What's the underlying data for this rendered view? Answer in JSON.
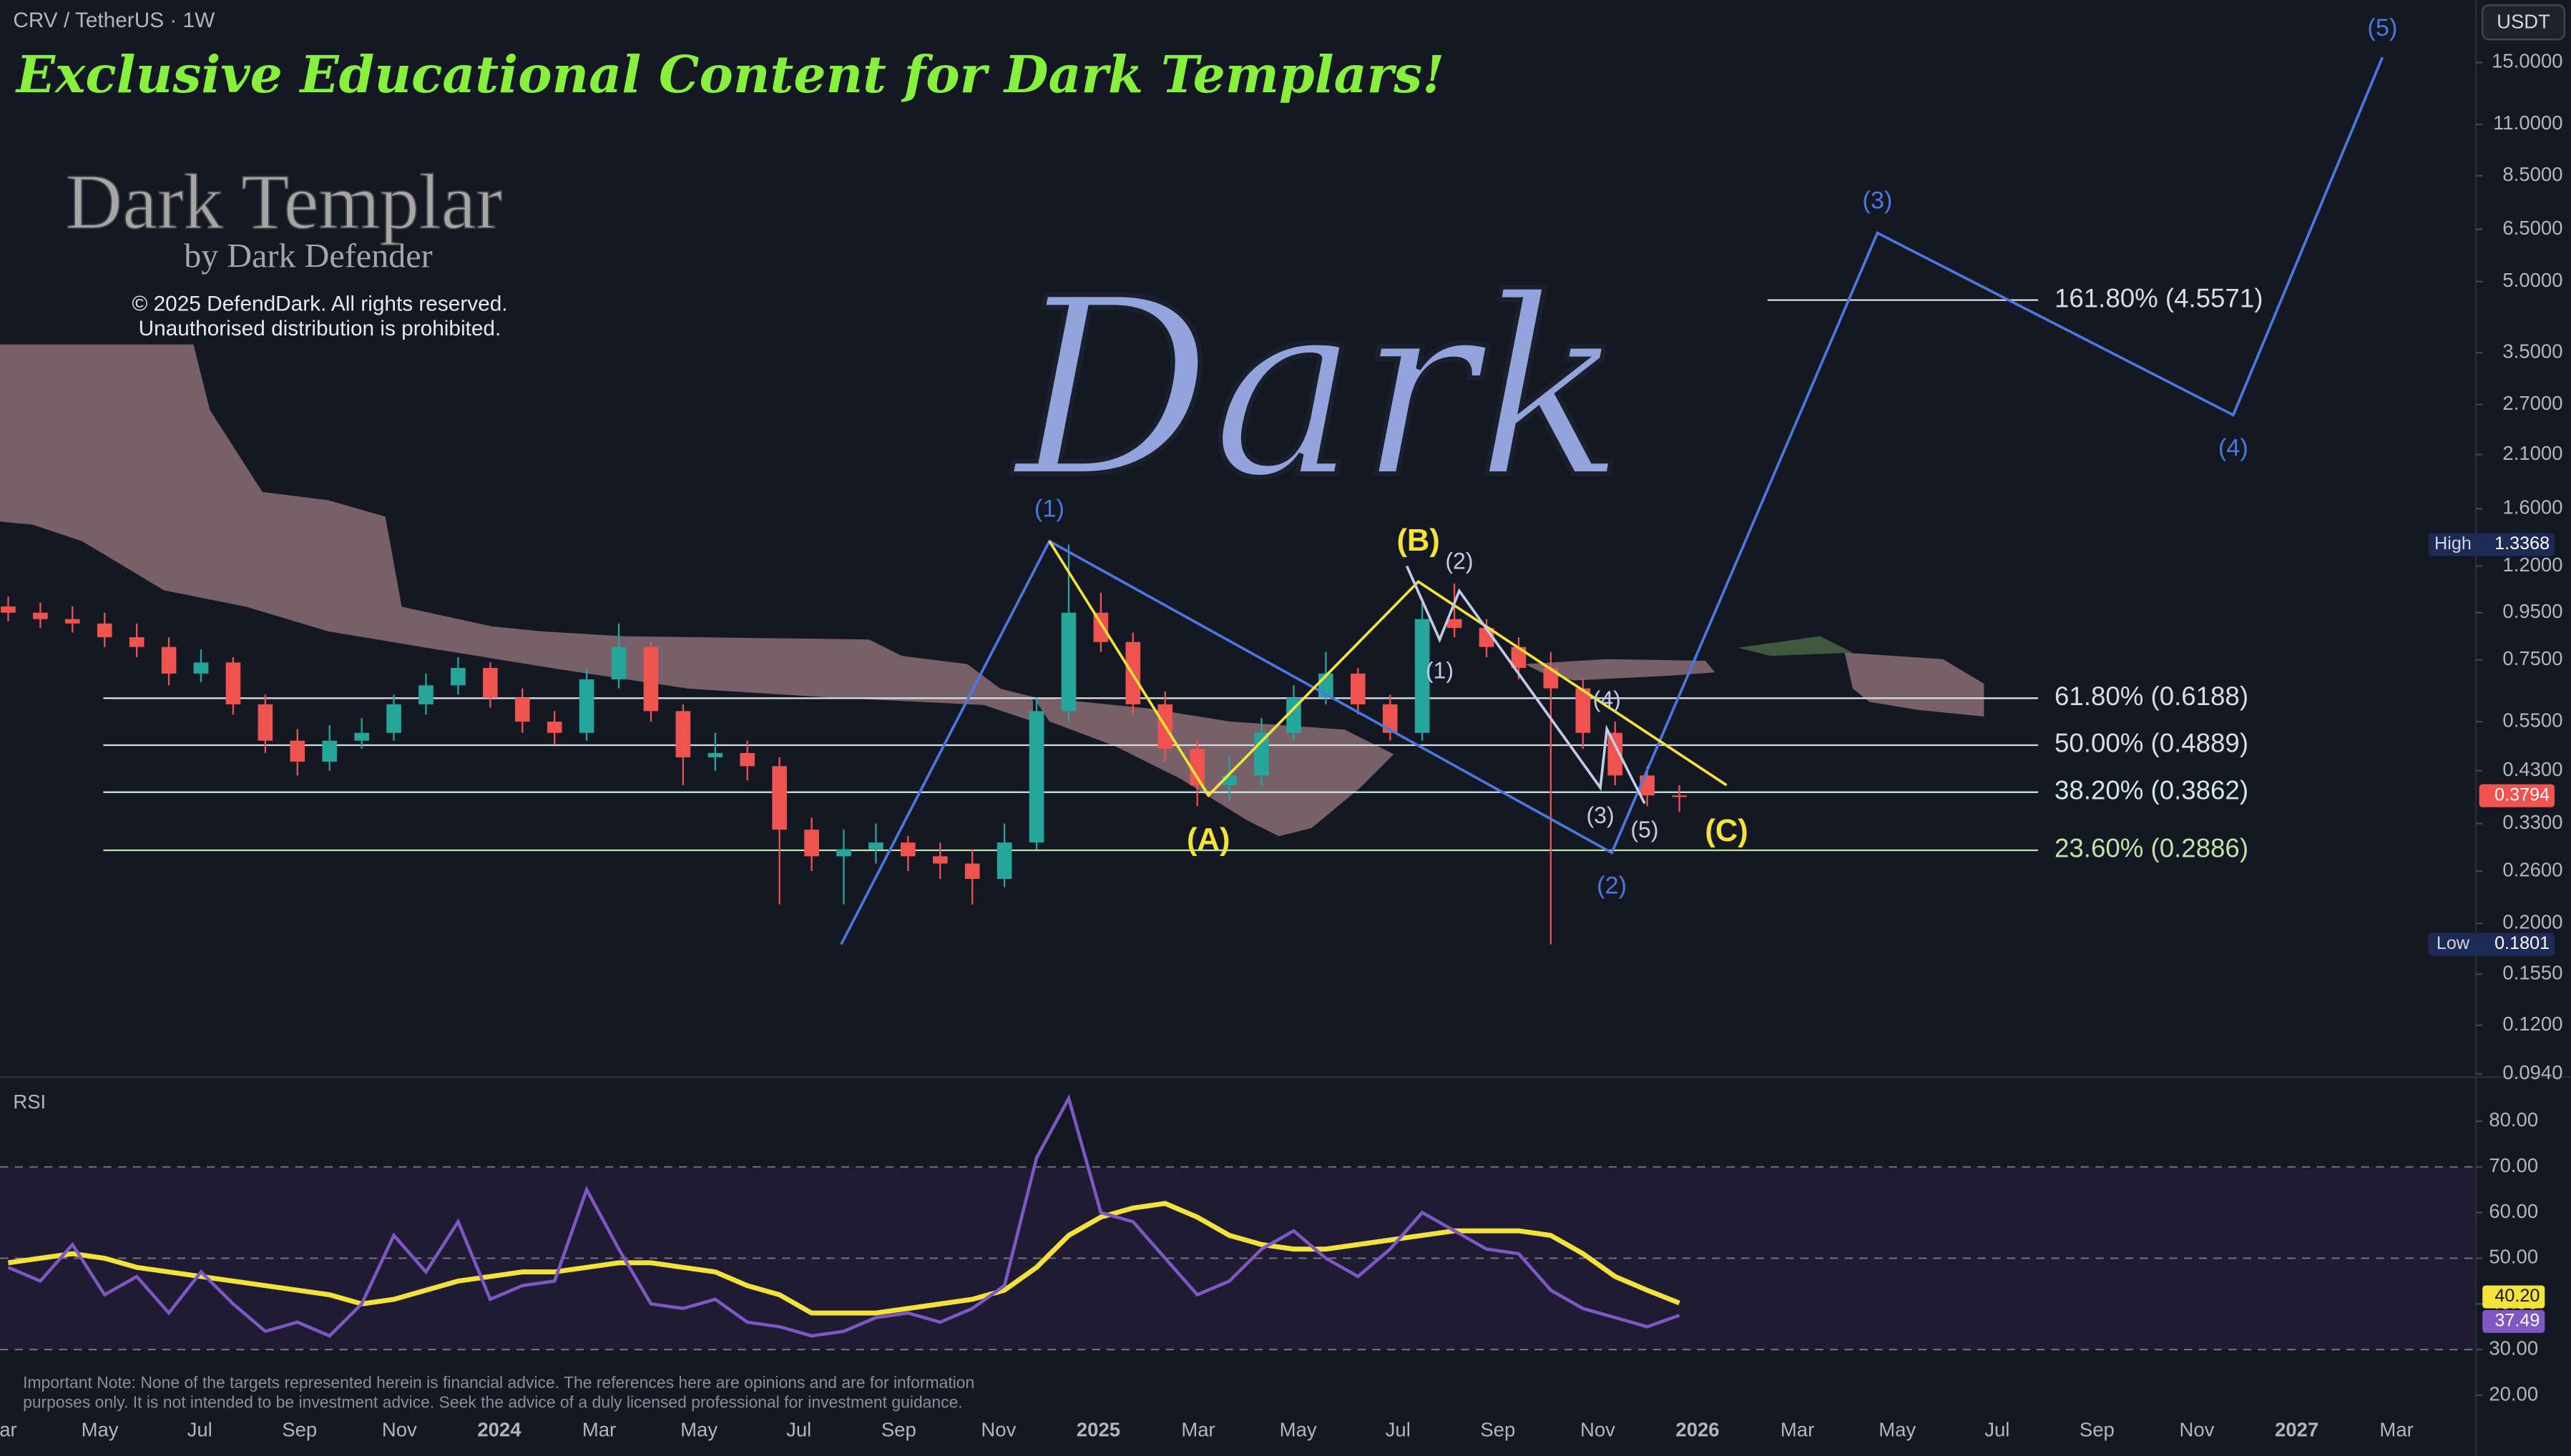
{
  "header": {
    "symbol": "CRV / TetherUS · 1W",
    "currency": "USDT"
  },
  "branding": {
    "banner": "Exclusive Educational Content for Dark Templars!",
    "logo": "Dark Templar",
    "byline": "by Dark Defender",
    "copyright": "© 2025 DefendDark. All rights reserved.",
    "notice": "Unauthorised distribution is prohibited.",
    "watermark": "Dark"
  },
  "footer_note": [
    "Important Note: None of the targets represented herein is financial advice. The references here are opinions and are for information",
    "purposes only. It is not intended to be investment advice. Seek the advice of a duly licensed professional for investment guidance."
  ],
  "time_axis": [
    "Mar",
    "May",
    "Jul",
    "Sep",
    "Nov",
    "2024",
    "Mar",
    "May",
    "Jul",
    "Sep",
    "Nov",
    "2025",
    "Mar",
    "May",
    "Jul",
    "Sep",
    "Nov",
    "2026",
    "Mar",
    "May",
    "Jul",
    "Sep",
    "Nov",
    "2027",
    "Mar"
  ],
  "chart_data": [
    {
      "type": "candlestick",
      "log_scale": true,
      "ylim": [
        0.0925,
        20.5
      ],
      "yticks": [
        {
          "value": 15,
          "label": "15.0000"
        },
        {
          "value": 11,
          "label": "11.0000"
        },
        {
          "value": 8.5,
          "label": "8.5000"
        },
        {
          "value": 6.5,
          "label": "6.5000"
        },
        {
          "value": 5,
          "label": "5.0000"
        },
        {
          "value": 3.5,
          "label": "3.5000"
        },
        {
          "value": 2.7,
          "label": "2.7000"
        },
        {
          "value": 2.1,
          "label": "2.1000"
        },
        {
          "value": 1.6,
          "label": "1.6000"
        },
        {
          "value": 1.2,
          "label": "1.2000"
        },
        {
          "value": 0.95,
          "label": "0.9500"
        },
        {
          "value": 0.75,
          "label": "0.7500"
        },
        {
          "value": 0.55,
          "label": "0.5500"
        },
        {
          "value": 0.43,
          "label": "0.4300"
        },
        {
          "value": 0.33,
          "label": "0.3300"
        },
        {
          "value": 0.26,
          "label": "0.2600"
        },
        {
          "value": 0.2,
          "label": "0.2000"
        },
        {
          "value": 0.155,
          "label": "0.1550"
        },
        {
          "value": 0.12,
          "label": "0.1200"
        },
        {
          "value": 0.094,
          "label": "0.0940"
        }
      ],
      "up_color": "#26a69a",
      "down_color": "#ef5350",
      "candles": [
        [
          0.98,
          1.03,
          0.91,
          0.95
        ],
        [
          0.95,
          1.0,
          0.88,
          0.92
        ],
        [
          0.92,
          0.98,
          0.86,
          0.9
        ],
        [
          0.9,
          0.95,
          0.8,
          0.84
        ],
        [
          0.84,
          0.9,
          0.76,
          0.8
        ],
        [
          0.8,
          0.84,
          0.66,
          0.7
        ],
        [
          0.7,
          0.79,
          0.67,
          0.74
        ],
        [
          0.74,
          0.76,
          0.57,
          0.6
        ],
        [
          0.6,
          0.63,
          0.47,
          0.5
        ],
        [
          0.5,
          0.53,
          0.42,
          0.45
        ],
        [
          0.45,
          0.54,
          0.43,
          0.5
        ],
        [
          0.5,
          0.56,
          0.48,
          0.52
        ],
        [
          0.52,
          0.63,
          0.5,
          0.6
        ],
        [
          0.6,
          0.7,
          0.57,
          0.66
        ],
        [
          0.66,
          0.76,
          0.63,
          0.72
        ],
        [
          0.72,
          0.74,
          0.59,
          0.62
        ],
        [
          0.62,
          0.65,
          0.52,
          0.55
        ],
        [
          0.55,
          0.58,
          0.49,
          0.52
        ],
        [
          0.52,
          0.72,
          0.5,
          0.68
        ],
        [
          0.68,
          0.9,
          0.65,
          0.8
        ],
        [
          0.8,
          0.82,
          0.55,
          0.58
        ],
        [
          0.58,
          0.6,
          0.4,
          0.46
        ],
        [
          0.46,
          0.52,
          0.43,
          0.47
        ],
        [
          0.47,
          0.5,
          0.41,
          0.44
        ],
        [
          0.44,
          0.46,
          0.22,
          0.32
        ],
        [
          0.32,
          0.34,
          0.26,
          0.28
        ],
        [
          0.28,
          0.32,
          0.22,
          0.29
        ],
        [
          0.29,
          0.33,
          0.27,
          0.3
        ],
        [
          0.3,
          0.31,
          0.26,
          0.28
        ],
        [
          0.28,
          0.3,
          0.25,
          0.27
        ],
        [
          0.27,
          0.29,
          0.22,
          0.25
        ],
        [
          0.25,
          0.33,
          0.24,
          0.3
        ],
        [
          0.3,
          0.62,
          0.29,
          0.58
        ],
        [
          0.58,
          1.3368,
          0.55,
          0.95
        ],
        [
          0.95,
          1.05,
          0.78,
          0.82
        ],
        [
          0.82,
          0.86,
          0.57,
          0.6
        ],
        [
          0.6,
          0.64,
          0.45,
          0.48
        ],
        [
          0.48,
          0.5,
          0.36,
          0.4
        ],
        [
          0.4,
          0.46,
          0.37,
          0.42
        ],
        [
          0.42,
          0.56,
          0.4,
          0.52
        ],
        [
          0.52,
          0.66,
          0.5,
          0.62
        ],
        [
          0.62,
          0.78,
          0.6,
          0.7
        ],
        [
          0.7,
          0.72,
          0.57,
          0.6
        ],
        [
          0.6,
          0.63,
          0.5,
          0.52
        ],
        [
          0.52,
          1.02,
          0.5,
          0.92
        ],
        [
          0.92,
          1.1,
          0.84,
          0.88
        ],
        [
          0.88,
          0.92,
          0.76,
          0.8
        ],
        [
          0.8,
          0.84,
          0.68,
          0.72
        ],
        [
          0.72,
          0.78,
          0.1801,
          0.65
        ],
        [
          0.65,
          0.68,
          0.48,
          0.52
        ],
        [
          0.52,
          0.55,
          0.4,
          0.42
        ],
        [
          0.42,
          0.44,
          0.36,
          0.38
        ],
        [
          0.38,
          0.4,
          0.35,
          0.3794
        ]
      ],
      "high_label": "High",
      "low_label": "Low",
      "fib_levels": [
        {
          "label": "161.80% (4.5571)",
          "value": 4.5571,
          "color": "#d9dce3"
        },
        {
          "label": "61.80% (0.6188)",
          "value": 0.6188,
          "color": "#d9dce3"
        },
        {
          "label": "50.00% (0.4889)",
          "value": 0.4889,
          "color": "#d9dce3"
        },
        {
          "label": "38.20% (0.3862)",
          "value": 0.3862,
          "color": "#cfe8ea"
        },
        {
          "label": "23.60% (0.2886)",
          "value": 0.2886,
          "color": "#bfe3a8"
        }
      ],
      "waves": [
        {
          "color": "#4a78e0",
          "labels": [
            null,
            "(1)",
            "(2)",
            "(3)",
            "(4)",
            "(5)"
          ],
          "values": [
            0.18,
            1.36,
            0.285,
            6.38,
            2.56,
            15.4
          ]
        },
        {
          "color": "#f2e23a",
          "labels": [
            null,
            "(A)",
            "(B)",
            "(C)"
          ],
          "values": [
            1.36,
            0.38,
            1.11,
            0.4
          ]
        },
        {
          "color": "#c2cbe6",
          "labels": [
            null,
            "(1)",
            "(2)",
            "(3)",
            "(4)",
            "(5)"
          ],
          "values": [
            1.2,
            0.83,
            1.06,
            0.395,
            0.53,
            0.365
          ]
        }
      ]
    },
    {
      "type": "line",
      "title": "RSI",
      "ylim": [
        13.2,
        89.3
      ],
      "yticks": [
        {
          "value": 80,
          "label": "80.00"
        },
        {
          "value": 70,
          "label": "70.00"
        },
        {
          "value": 60,
          "label": "60.00"
        },
        {
          "value": 50,
          "label": "50.00"
        },
        {
          "value": 40,
          "label": "40.00"
        },
        {
          "value": 30,
          "label": "30.00"
        },
        {
          "value": 20,
          "label": "20.00"
        }
      ],
      "levels": [
        70,
        50,
        30
      ],
      "series": [
        {
          "color": "#f2e23a",
          "last_label": "40.20",
          "values": [
            49,
            50,
            51,
            50,
            48,
            47,
            46,
            45,
            44,
            43,
            42,
            40,
            41,
            43,
            45,
            46,
            47,
            47,
            48,
            49,
            49,
            48,
            47,
            44,
            42,
            38,
            38,
            38,
            39,
            40,
            41,
            43,
            48,
            55,
            59,
            61,
            62,
            59,
            55,
            53,
            52,
            52,
            53,
            54,
            55,
            56,
            56,
            56,
            55,
            51,
            46,
            43,
            40.2
          ]
        },
        {
          "color": "#7e57c2",
          "last_label": "37.49",
          "values": [
            48,
            45,
            53,
            42,
            46,
            38,
            47,
            40,
            34,
            36,
            33,
            40,
            55,
            47,
            58,
            41,
            44,
            45,
            65,
            52,
            40,
            39,
            41,
            36,
            35,
            33,
            34,
            37,
            38,
            36,
            39,
            44,
            72,
            85,
            60,
            58,
            50,
            42,
            45,
            52,
            56,
            50,
            46,
            52,
            60,
            56,
            52,
            51,
            43,
            39,
            37,
            35,
            37.49
          ]
        }
      ]
    }
  ]
}
